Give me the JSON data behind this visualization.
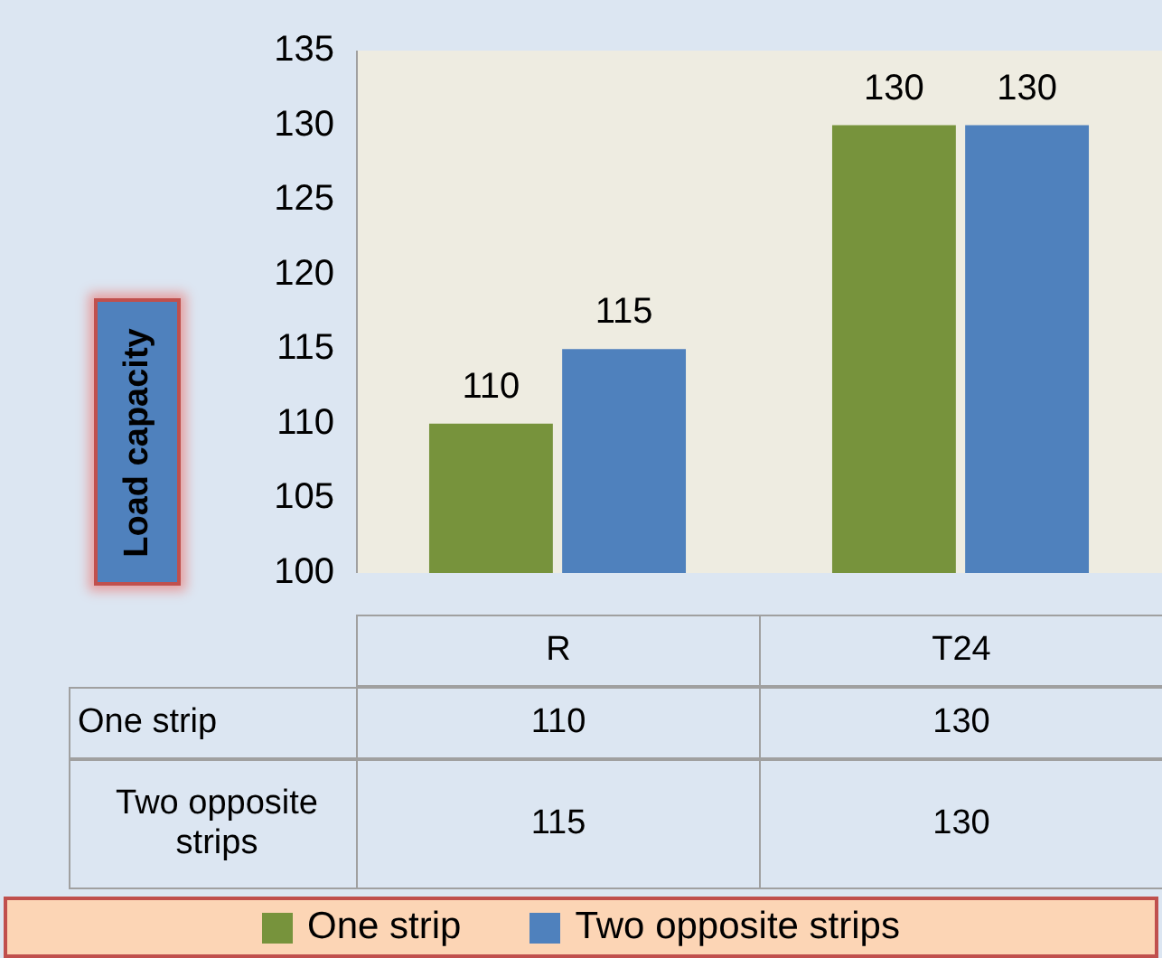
{
  "chart_data": {
    "type": "bar",
    "ylabel": "Load capacity",
    "categories": [
      "R",
      "T24"
    ],
    "series": [
      {
        "name": "One strip",
        "color": "#77933c",
        "values": [
          110,
          130
        ],
        "value_labels": [
          "110",
          "130"
        ]
      },
      {
        "name": "Two opposite strips",
        "color": "#4f81bd",
        "values": [
          115,
          130
        ],
        "value_labels": [
          "115",
          "130"
        ]
      }
    ],
    "ylim": [
      100,
      135
    ],
    "yticks": [
      100,
      105,
      110,
      115,
      120,
      125,
      130,
      135
    ],
    "annotations": [
      "110",
      "130",
      "115",
      "130"
    ],
    "grid": false,
    "legend": "bottom",
    "data_labels": true
  }
}
